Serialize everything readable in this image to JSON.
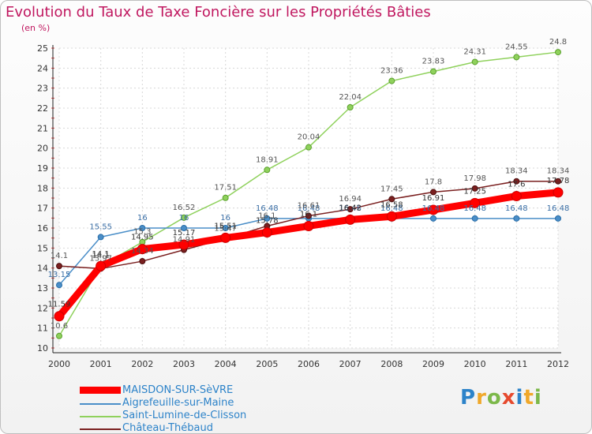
{
  "chart_data": {
    "type": "line",
    "title": "Evolution du Taux de Taxe Foncière sur les Propriétés Bâties",
    "subtitle": "(en %)",
    "xlabel": "",
    "ylabel": "(en %)",
    "x": [
      "2000",
      "2001",
      "2002",
      "2003",
      "2004",
      "2005",
      "2006",
      "2007",
      "2008",
      "2009",
      "2010",
      "2011",
      "2012"
    ],
    "ylim": [
      10,
      25
    ],
    "yticks": [
      "10",
      "11",
      "12",
      "13",
      "14",
      "15",
      "16",
      "17",
      "18",
      "19",
      "20",
      "21",
      "22",
      "23",
      "24",
      "25"
    ],
    "grid": true,
    "legend_position": "bottom-left",
    "series": [
      {
        "name": "MAISDON-SUR-SèVRE",
        "color": "#ff0000",
        "values": [
          11.59,
          14.1,
          14.95,
          15.17,
          15.51,
          15.78,
          16.1,
          16.42,
          16.58,
          16.91,
          17.25,
          17.6,
          17.78
        ],
        "labels": [
          "11.59",
          "14.1",
          "14.95",
          "15.17",
          "15.51",
          "15.78",
          "16.1",
          "16.42",
          "16.58",
          "16.91",
          "17.25",
          "17.6",
          "17.78"
        ]
      },
      {
        "name": "Aigrefeuille-sur-Maine",
        "color": "#4a8ec8",
        "values": [
          13.15,
          15.55,
          16,
          16,
          16,
          16.48,
          16.48,
          16.48,
          16.48,
          16.48,
          16.48,
          16.48,
          16.48
        ],
        "labels": [
          "13.15",
          "15.55",
          "16",
          "16",
          "16",
          "16.48",
          "16.48",
          "16.48",
          "16.48",
          "16.48",
          "16.48",
          "16.48",
          "16.48"
        ]
      },
      {
        "name": "Saint-Lumine-de-Clisson",
        "color": "#8fd15c",
        "values": [
          10.6,
          14.1,
          15.3,
          16.52,
          17.51,
          18.91,
          20.04,
          22.04,
          23.36,
          23.83,
          24.31,
          24.55,
          24.8
        ],
        "labels": [
          "10.6",
          "14.1",
          "15.3",
          "16.52",
          "17.51",
          "18.91",
          "20.04",
          "22.04",
          "23.36",
          "23.83",
          "24.31",
          "24.55",
          "24.8"
        ]
      },
      {
        "name": "Château-Thébaud",
        "color": "#7a1f1f",
        "values": [
          14.1,
          13.97,
          14.34,
          14.91,
          15.47,
          16.1,
          16.61,
          16.94,
          17.45,
          17.8,
          17.98,
          18.34,
          18.34
        ],
        "labels": [
          "14.1",
          "13.97",
          "14.34",
          "14.91",
          "15.47",
          "16.1",
          "16.61",
          "16.94",
          "17.45",
          "17.8",
          "17.98",
          "18.34",
          "18.34"
        ]
      }
    ]
  },
  "logo": {
    "letters": [
      "P",
      "r",
      "o",
      "x",
      "i",
      "t",
      "i"
    ]
  }
}
